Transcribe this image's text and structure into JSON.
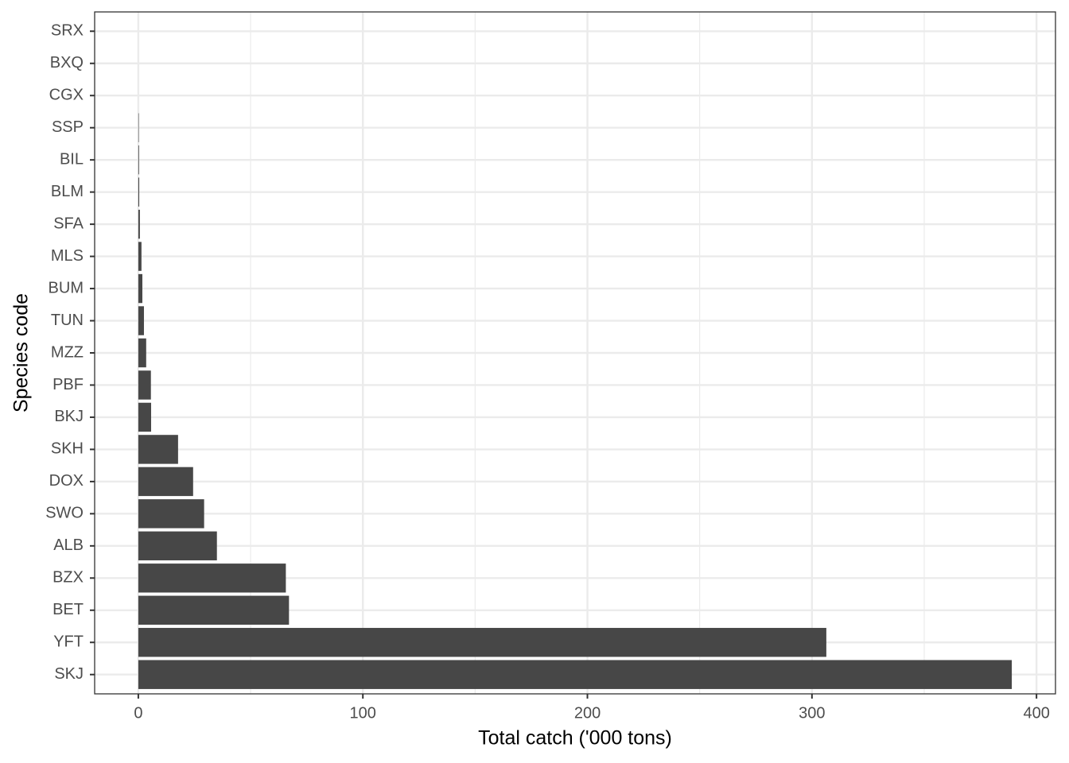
{
  "chart_data": {
    "type": "hbar",
    "xlabel": "Total catch ('000 tons)",
    "ylabel": "Species code",
    "categories": [
      "SKJ",
      "YFT",
      "BET",
      "BZX",
      "ALB",
      "SWO",
      "DOX",
      "SKH",
      "BKJ",
      "PBF",
      "MZZ",
      "TUN",
      "BUM",
      "MLS",
      "SFA",
      "BLM",
      "BIL",
      "SSP",
      "CGX",
      "BXQ",
      "SRX"
    ],
    "values": [
      389,
      306.4,
      67.1,
      65.7,
      35,
      29.3,
      24.4,
      17.7,
      5.7,
      5.6,
      3.5,
      2.5,
      1.8,
      1.4,
      0.7,
      0.4,
      0.3,
      0.2,
      0,
      0,
      0
    ],
    "color": "#474747",
    "xlim": [
      -19.45,
      408.45
    ],
    "xticks": [
      0,
      100,
      200,
      300,
      400
    ],
    "xminor": [
      50,
      150,
      250,
      350
    ],
    "grid": true
  }
}
